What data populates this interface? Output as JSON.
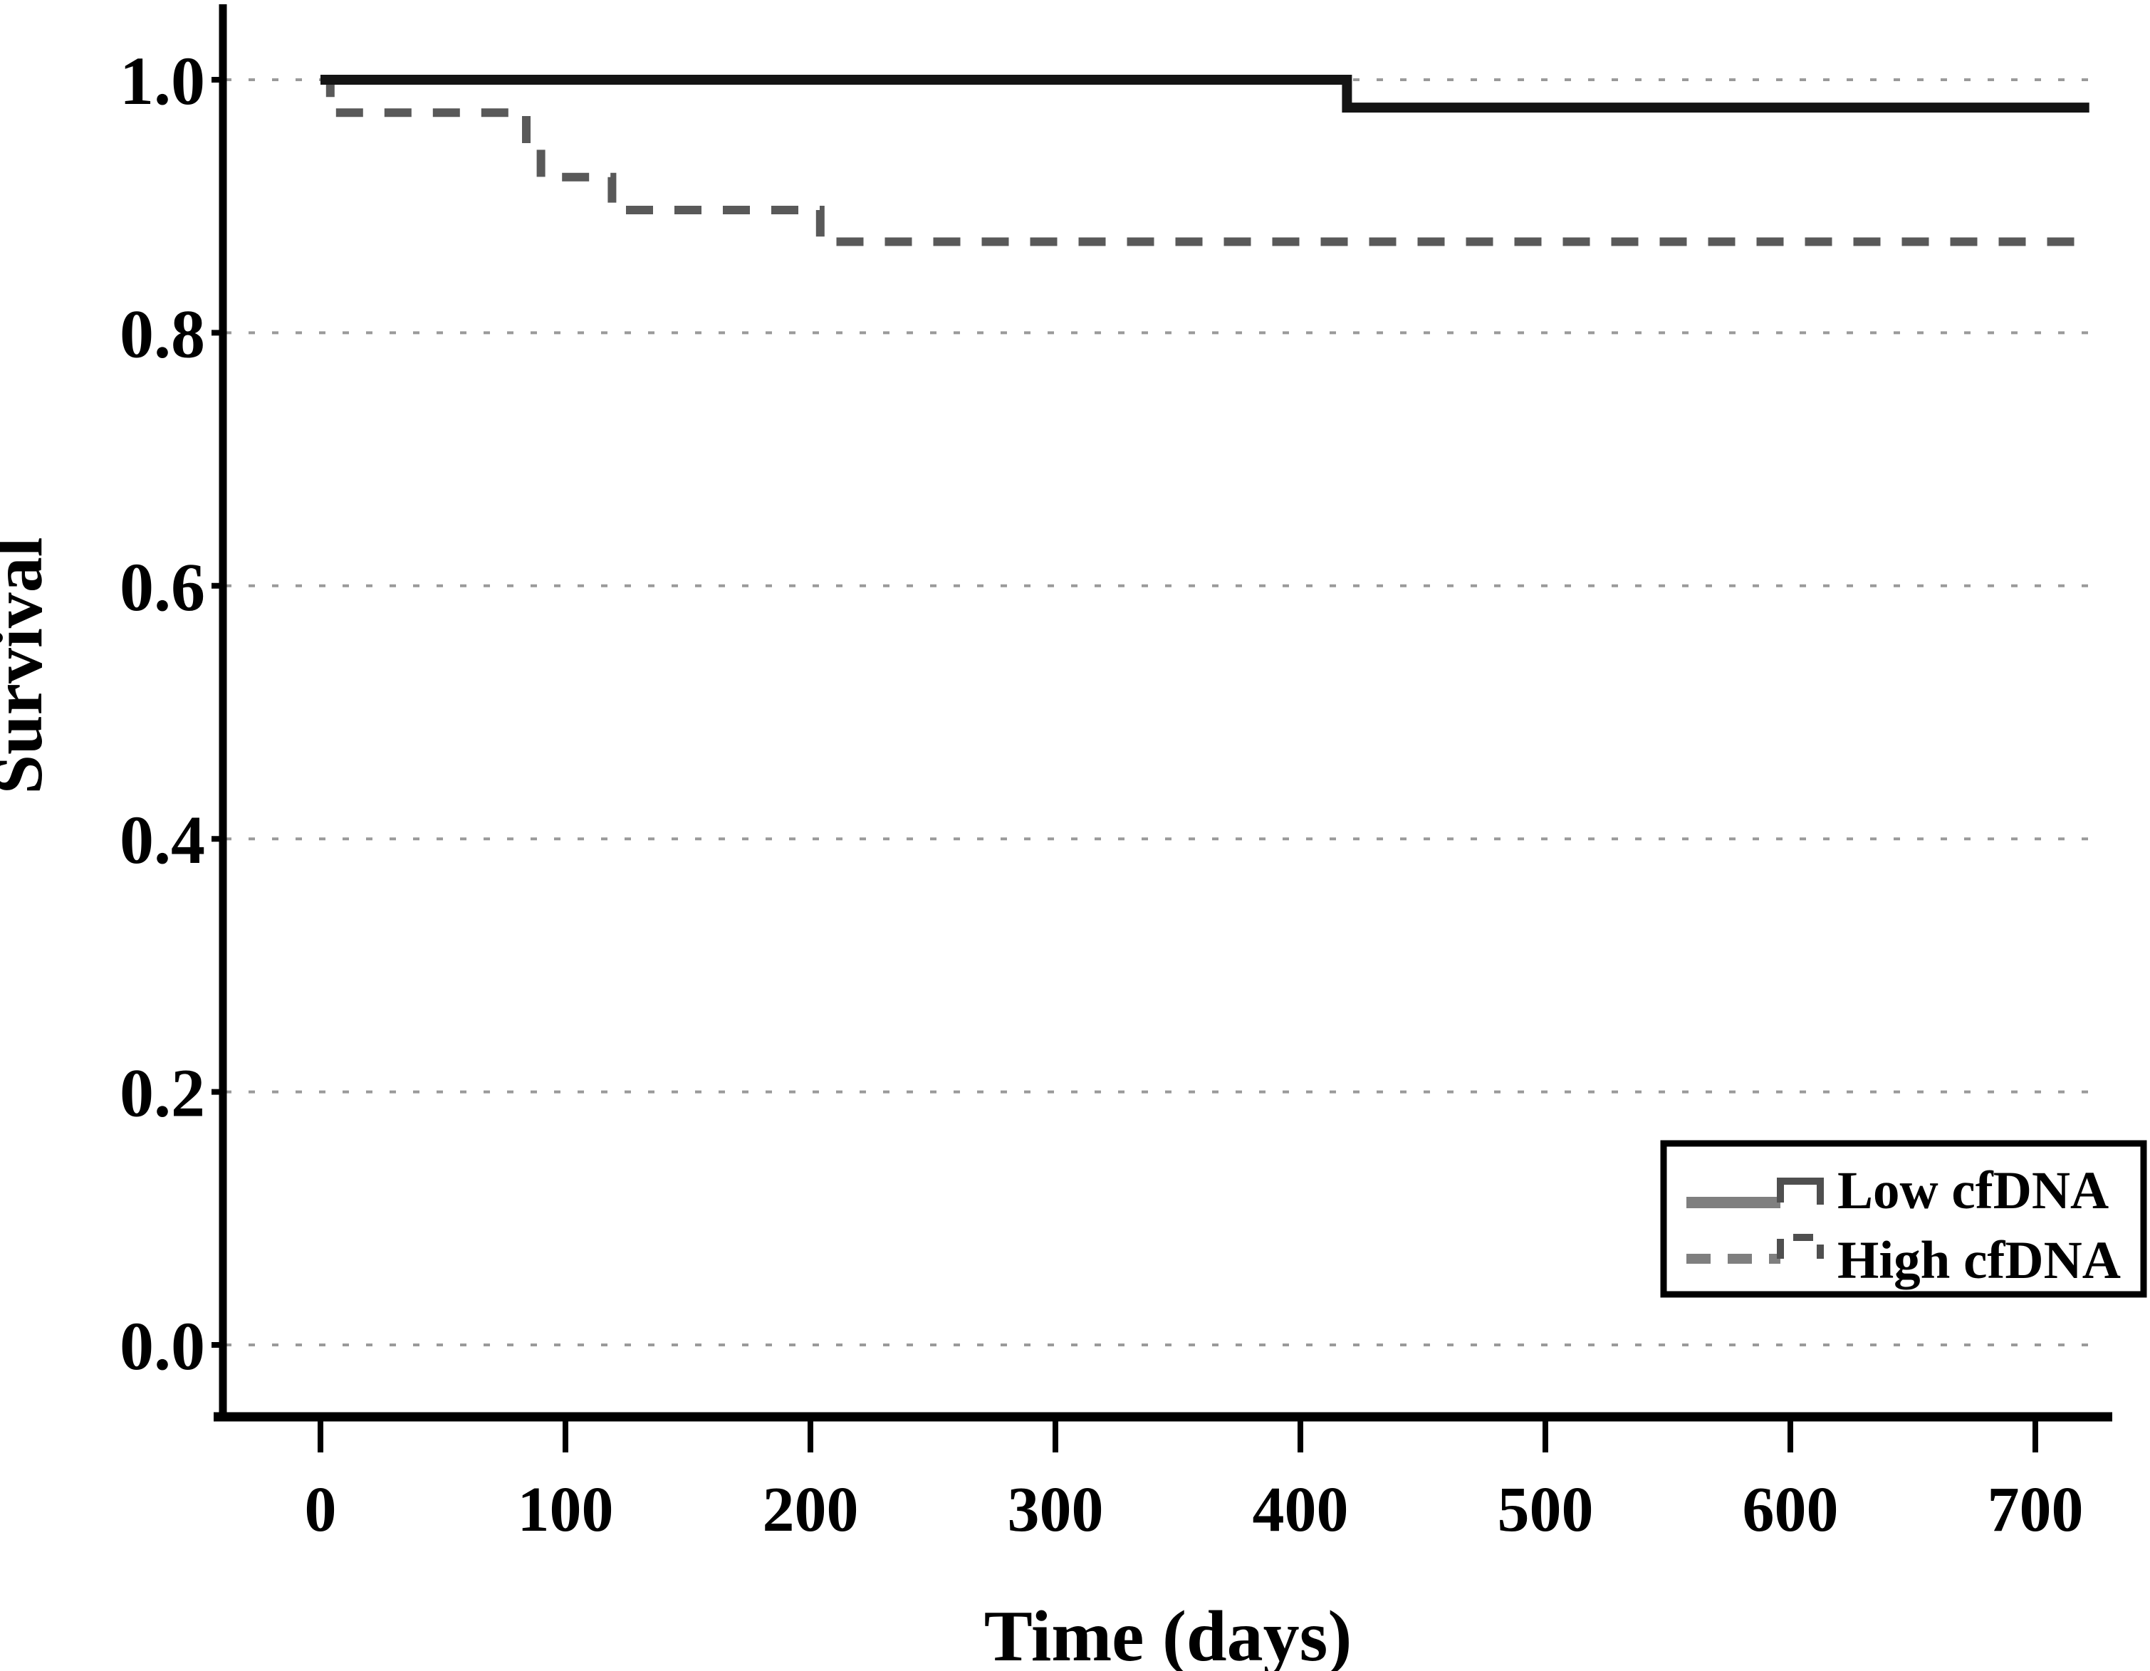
{
  "chart_data": {
    "type": "line",
    "subtype": "kaplan_meier_step",
    "title": "",
    "xlabel": "Time (days)",
    "ylabel": "Survival",
    "x_tick_labels": [
      "0",
      "100",
      "200",
      "300",
      "400",
      "500",
      "600",
      "700"
    ],
    "x_tick_values": [
      0,
      100,
      200,
      300,
      400,
      500,
      600,
      700
    ],
    "y_tick_labels": [
      "1.0",
      "0.8",
      "0.6",
      "0.4",
      "0.2",
      "0.0"
    ],
    "y_tick_values": [
      1.0,
      0.8,
      0.6,
      0.4,
      0.2,
      0.0
    ],
    "xlim_days": [
      -40,
      730
    ],
    "ylim": [
      -0.06,
      1.06
    ],
    "grid": "horizontal dotted gridlines at every 0.2",
    "legend_position": "lower-right",
    "series": [
      {
        "name": "Low cfDNA",
        "line_style": "solid",
        "color": "#141414",
        "points": [
          [
            0,
            1.0
          ],
          [
            419,
            1.0
          ],
          [
            419,
            0.978
          ],
          [
            722,
            0.978
          ]
        ]
      },
      {
        "name": "High cfDNA",
        "line_style": "dashed",
        "color": "#595959",
        "points": [
          [
            0,
            1.0
          ],
          [
            4,
            1.0
          ],
          [
            4,
            0.974
          ],
          [
            84,
            0.974
          ],
          [
            84,
            0.949
          ],
          [
            90,
            0.949
          ],
          [
            90,
            0.923
          ],
          [
            119,
            0.923
          ],
          [
            119,
            0.897
          ],
          [
            204,
            0.897
          ],
          [
            204,
            0.872
          ],
          [
            722,
            0.872
          ]
        ]
      }
    ]
  },
  "legend": {
    "entries": [
      {
        "label": "Low cfDNA",
        "sample_style": "solid"
      },
      {
        "label": "High cfDNA",
        "sample_style": "dashed"
      }
    ]
  },
  "colors": {
    "background": "#ffffff",
    "axis": "#000000",
    "tick_label": "#000000",
    "grid_line": "#9a9a9a",
    "legend_border": "#000000",
    "legend_sample": "#7f7f7f",
    "legend_sample_dark": "#4f4f4f"
  }
}
